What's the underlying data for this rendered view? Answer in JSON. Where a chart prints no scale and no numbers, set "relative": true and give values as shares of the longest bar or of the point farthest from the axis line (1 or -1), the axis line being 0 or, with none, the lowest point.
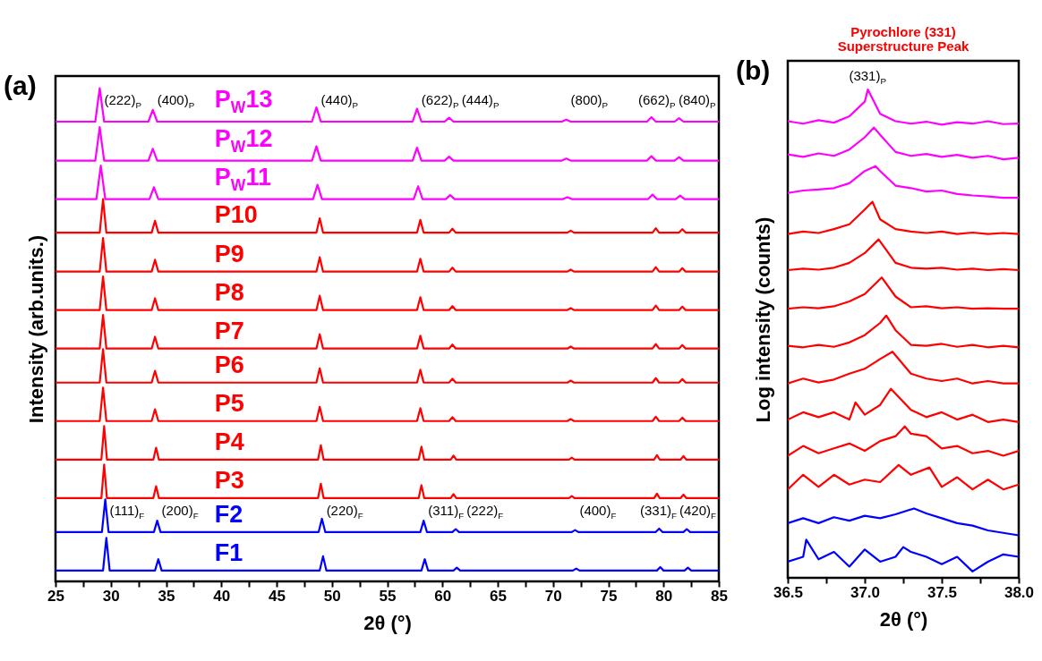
{
  "chart_data": [
    {
      "type": "line",
      "relative": true,
      "xlabel": "2θ (°)",
      "ylabel": "Intensity (arb.units.)",
      "xlim": [
        25,
        85
      ],
      "xticks": [
        25,
        {
          "value": 27.5,
          "label": null
        },
        30,
        {
          "value": 32.5,
          "label": null
        },
        35,
        {
          "value": 37.5,
          "label": null
        },
        40,
        {
          "value": 42.5,
          "label": null
        },
        45,
        {
          "value": 47.5,
          "label": null
        },
        50,
        {
          "value": 52.5,
          "label": null
        },
        55,
        {
          "value": 57.5,
          "label": null
        },
        60,
        {
          "value": 62.5,
          "label": null
        },
        65,
        {
          "value": 67.5,
          "label": null
        },
        70,
        {
          "value": 72.5,
          "label": null
        },
        75,
        {
          "value": 77.5,
          "label": null
        },
        80,
        {
          "value": 82.5,
          "label": null
        },
        85
      ],
      "series": [
        {
          "name": "P$_{W}$13",
          "color": "#ff00ff",
          "x": [
            25,
            28.6,
            29.0,
            29.4,
            33.4,
            33.8,
            34.2,
            48.2,
            48.6,
            49.0,
            57.3,
            57.7,
            58.1,
            60.2,
            60.6,
            61.0,
            70.8,
            71.2,
            71.6,
            78.5,
            78.9,
            79.3,
            81.0,
            81.4,
            81.8,
            85
          ],
          "values": [
            0.932,
            0.932,
            1.0,
            0.932,
            0.932,
            0.956,
            0.932,
            0.932,
            0.961,
            0.932,
            0.932,
            0.958,
            0.932,
            0.932,
            0.94,
            0.932,
            0.932,
            0.936,
            0.932,
            0.932,
            0.941,
            0.932,
            0.932,
            0.939,
            0.932,
            0.932
          ]
        },
        {
          "name": "P$_{W}$12",
          "color": "#ff00ff",
          "x": [
            25,
            28.6,
            29.0,
            29.4,
            33.4,
            33.8,
            34.2,
            48.2,
            48.6,
            49.0,
            57.3,
            57.7,
            58.1,
            60.2,
            60.6,
            61.0,
            70.8,
            71.2,
            71.6,
            78.5,
            78.9,
            79.3,
            81.0,
            81.4,
            81.8,
            85
          ],
          "values": [
            0.853,
            0.853,
            0.921,
            0.853,
            0.853,
            0.877,
            0.853,
            0.853,
            0.882,
            0.853,
            0.853,
            0.879,
            0.853,
            0.853,
            0.861,
            0.853,
            0.853,
            0.857,
            0.853,
            0.853,
            0.862,
            0.853,
            0.853,
            0.86,
            0.853,
            0.853
          ]
        },
        {
          "name": "P$_{W}$11",
          "color": "#ff00ff",
          "x": [
            25,
            28.7,
            29.1,
            29.5,
            33.5,
            33.9,
            34.3,
            48.3,
            48.7,
            49.1,
            57.4,
            57.8,
            58.2,
            60.3,
            60.7,
            61.1,
            70.9,
            71.3,
            71.7,
            78.6,
            79.0,
            79.4,
            81.1,
            81.5,
            81.9,
            85
          ],
          "values": [
            0.775,
            0.775,
            0.843,
            0.775,
            0.775,
            0.799,
            0.775,
            0.775,
            0.804,
            0.775,
            0.775,
            0.801,
            0.775,
            0.775,
            0.783,
            0.775,
            0.775,
            0.779,
            0.775,
            0.775,
            0.784,
            0.775,
            0.775,
            0.782,
            0.775,
            0.775
          ]
        },
        {
          "name": "P10",
          "color": "#ff0000",
          "x": [
            25,
            29.0,
            29.3,
            29.6,
            33.7,
            34.0,
            34.3,
            48.6,
            48.9,
            49.2,
            57.7,
            58.0,
            58.3,
            60.6,
            60.9,
            61.2,
            71.3,
            71.6,
            71.9,
            79.0,
            79.3,
            79.6,
            81.4,
            81.7,
            82.0,
            85
          ],
          "values": [
            0.707,
            0.707,
            0.775,
            0.707,
            0.707,
            0.731,
            0.707,
            0.707,
            0.736,
            0.707,
            0.707,
            0.733,
            0.707,
            0.707,
            0.715,
            0.707,
            0.707,
            0.711,
            0.707,
            0.707,
            0.716,
            0.707,
            0.707,
            0.714,
            0.707,
            0.707
          ]
        },
        {
          "name": "P9",
          "color": "#ff0000",
          "x": [
            25,
            29.0,
            29.3,
            29.6,
            33.7,
            34.0,
            34.3,
            48.6,
            48.9,
            49.2,
            57.7,
            58.0,
            58.3,
            60.6,
            60.9,
            61.2,
            71.3,
            71.6,
            71.9,
            79.0,
            79.3,
            79.6,
            81.4,
            81.7,
            82.0,
            85
          ],
          "values": [
            0.628,
            0.628,
            0.696,
            0.628,
            0.628,
            0.652,
            0.628,
            0.628,
            0.657,
            0.628,
            0.628,
            0.654,
            0.628,
            0.628,
            0.636,
            0.628,
            0.628,
            0.632,
            0.628,
            0.628,
            0.637,
            0.628,
            0.628,
            0.635,
            0.628,
            0.628
          ]
        },
        {
          "name": "P8",
          "color": "#ff0000",
          "x": [
            25,
            29.0,
            29.3,
            29.6,
            33.7,
            34.0,
            34.3,
            48.6,
            48.9,
            49.2,
            57.7,
            58.0,
            58.3,
            60.6,
            60.9,
            61.2,
            71.3,
            71.6,
            71.9,
            79.0,
            79.3,
            79.6,
            81.4,
            81.7,
            82.0,
            85
          ],
          "values": [
            0.55,
            0.55,
            0.618,
            0.55,
            0.55,
            0.574,
            0.55,
            0.55,
            0.579,
            0.55,
            0.55,
            0.576,
            0.55,
            0.55,
            0.558,
            0.55,
            0.55,
            0.554,
            0.55,
            0.55,
            0.559,
            0.55,
            0.55,
            0.557,
            0.55,
            0.55
          ]
        },
        {
          "name": "P7",
          "color": "#ff0000",
          "x": [
            25,
            29.0,
            29.3,
            29.6,
            33.7,
            34.0,
            34.3,
            48.6,
            48.9,
            49.2,
            57.7,
            58.0,
            58.3,
            60.6,
            60.9,
            61.2,
            71.3,
            71.6,
            71.9,
            79.0,
            79.3,
            79.6,
            81.4,
            81.7,
            82.0,
            85
          ],
          "values": [
            0.472,
            0.472,
            0.54,
            0.472,
            0.472,
            0.496,
            0.472,
            0.472,
            0.501,
            0.472,
            0.472,
            0.498,
            0.472,
            0.472,
            0.48,
            0.472,
            0.472,
            0.476,
            0.472,
            0.472,
            0.481,
            0.472,
            0.472,
            0.479,
            0.472,
            0.472
          ]
        },
        {
          "name": "P6",
          "color": "#ff0000",
          "x": [
            25,
            29.0,
            29.3,
            29.6,
            33.7,
            34.0,
            34.3,
            48.6,
            48.9,
            49.2,
            57.7,
            58.0,
            58.3,
            60.6,
            60.9,
            61.2,
            71.3,
            71.6,
            71.9,
            79.0,
            79.3,
            79.6,
            81.4,
            81.7,
            82.0,
            85
          ],
          "values": [
            0.403,
            0.403,
            0.471,
            0.403,
            0.403,
            0.427,
            0.403,
            0.403,
            0.432,
            0.403,
            0.403,
            0.429,
            0.403,
            0.403,
            0.411,
            0.403,
            0.403,
            0.407,
            0.403,
            0.403,
            0.412,
            0.403,
            0.403,
            0.41,
            0.403,
            0.403
          ]
        },
        {
          "name": "P5",
          "color": "#ff0000",
          "x": [
            25,
            29.0,
            29.3,
            29.6,
            33.7,
            34.0,
            34.3,
            48.6,
            48.9,
            49.2,
            57.7,
            58.0,
            58.3,
            60.6,
            60.9,
            61.2,
            71.3,
            71.6,
            71.9,
            79.0,
            79.3,
            79.6,
            81.4,
            81.7,
            82.0,
            85
          ],
          "values": [
            0.325,
            0.325,
            0.393,
            0.325,
            0.325,
            0.349,
            0.325,
            0.325,
            0.354,
            0.325,
            0.325,
            0.351,
            0.325,
            0.325,
            0.333,
            0.325,
            0.325,
            0.329,
            0.325,
            0.325,
            0.334,
            0.325,
            0.325,
            0.332,
            0.325,
            0.325
          ]
        },
        {
          "name": "P4",
          "color": "#ff0000",
          "x": [
            25,
            29.15,
            29.4,
            29.65,
            33.85,
            34.1,
            34.35,
            48.75,
            49.0,
            49.25,
            57.85,
            58.1,
            58.35,
            60.75,
            61.0,
            61.25,
            71.45,
            71.7,
            71.95,
            79.15,
            79.4,
            79.65,
            81.55,
            81.8,
            82.05,
            85
          ],
          "values": [
            0.247,
            0.247,
            0.315,
            0.247,
            0.247,
            0.271,
            0.247,
            0.247,
            0.276,
            0.247,
            0.247,
            0.273,
            0.247,
            0.247,
            0.255,
            0.247,
            0.247,
            0.251,
            0.247,
            0.247,
            0.256,
            0.247,
            0.247,
            0.254,
            0.247,
            0.247
          ]
        },
        {
          "name": "P3",
          "color": "#ff0000",
          "x": [
            25,
            29.15,
            29.4,
            29.65,
            33.85,
            34.1,
            34.35,
            48.75,
            49.0,
            49.25,
            57.85,
            58.1,
            58.35,
            60.75,
            61.0,
            61.25,
            71.45,
            71.7,
            71.95,
            79.15,
            79.4,
            79.65,
            81.55,
            81.8,
            82.05,
            85
          ],
          "values": [
            0.169,
            0.169,
            0.237,
            0.169,
            0.169,
            0.193,
            0.169,
            0.169,
            0.198,
            0.169,
            0.169,
            0.195,
            0.169,
            0.169,
            0.177,
            0.169,
            0.169,
            0.173,
            0.169,
            0.169,
            0.178,
            0.169,
            0.169,
            0.176,
            0.169,
            0.169
          ]
        },
        {
          "name": "F2",
          "color": "#0000ff",
          "x": [
            25,
            29.2,
            29.5,
            29.8,
            33.9,
            34.2,
            34.5,
            48.8,
            49.1,
            49.4,
            58.0,
            58.3,
            58.6,
            60.9,
            61.2,
            61.5,
            71.7,
            72.0,
            72.3,
            79.3,
            79.6,
            79.9,
            81.8,
            82.1,
            82.4,
            85
          ],
          "values": [
            0.1,
            0.1,
            0.166,
            0.1,
            0.1,
            0.123,
            0.1,
            0.1,
            0.127,
            0.1,
            0.1,
            0.123,
            0.1,
            0.1,
            0.106,
            0.1,
            0.1,
            0.104,
            0.1,
            0.1,
            0.107,
            0.1,
            0.1,
            0.106,
            0.1,
            0.1
          ]
        },
        {
          "name": "F1",
          "color": "#0000ff",
          "x": [
            25,
            29.3,
            29.6,
            29.9,
            34.0,
            34.3,
            34.6,
            48.9,
            49.2,
            49.5,
            58.1,
            58.4,
            58.7,
            61.0,
            61.3,
            61.6,
            71.8,
            72.1,
            72.4,
            79.4,
            79.7,
            80.0,
            81.9,
            82.2,
            82.5,
            85
          ],
          "values": [
            0.022,
            0.022,
            0.088,
            0.022,
            0.022,
            0.045,
            0.022,
            0.022,
            0.051,
            0.022,
            0.022,
            0.045,
            0.022,
            0.022,
            0.028,
            0.022,
            0.022,
            0.026,
            0.022,
            0.022,
            0.029,
            0.022,
            0.022,
            0.028,
            0.022,
            0.022
          ]
        }
      ],
      "annotations": [
        "(a)",
        {
          "text": "(222)$_{P}$",
          "x": 29.0,
          "y": 0.932
        },
        {
          "text": "(400)$_{P}$",
          "x": 33.8,
          "y": 0.932
        },
        {
          "text": "(440)$_{P}$",
          "x": 48.6,
          "y": 0.932
        },
        {
          "text": "(622)$_{P}$",
          "x": 57.7,
          "y": 0.932
        },
        {
          "text": "(444)$_{P}$",
          "x": 60.6,
          "y": 0.932
        },
        {
          "text": "(800)$_{P}$",
          "x": 71.2,
          "y": 0.932
        },
        {
          "text": "(662)$_{P}$",
          "x": 78.9,
          "y": 0.932
        },
        {
          "text": "(840)$_{P}$",
          "x": 81.4,
          "y": 0.932
        },
        {
          "text": "(111)$_{F}$",
          "x": 29.5,
          "y": 0.1
        },
        {
          "text": "(200)$_{F}$",
          "x": 34.2,
          "y": 0.1
        },
        {
          "text": "(220)$_{F}$",
          "x": 49.1,
          "y": 0.1
        },
        {
          "text": "(311)$_{F}$",
          "x": 58.3,
          "y": 0.1
        },
        {
          "text": "(222)$_{F}$",
          "x": 61.2,
          "y": 0.1
        },
        {
          "text": "(400)$_{F}$",
          "x": 72.0,
          "y": 0.1
        },
        {
          "text": "(331)$_{F}$",
          "x": 79.6,
          "y": 0.1
        },
        {
          "text": "(420)$_{F}$",
          "x": 82.1,
          "y": 0.1
        }
      ]
    },
    {
      "type": "line",
      "relative": true,
      "title": "Pyrochlore (331)",
      "subtitle": "Superstructure Peak",
      "xlabel": "2θ (°)",
      "ylabel": "Log intensity (counts)",
      "xlim": [
        36.5,
        38.0
      ],
      "xticks": [
        36.5,
        {
          "value": 36.75,
          "label": null
        },
        {
          "value": 37,
          "label": "37.0"
        },
        {
          "value": 37.25,
          "label": null
        },
        37.5,
        {
          "value": 37.75,
          "label": null
        },
        {
          "value": 38,
          "label": "38.0"
        }
      ],
      "series": [
        {
          "color": "#ff00ff",
          "x": [
            36.5,
            36.6,
            36.7,
            36.8,
            36.9,
            37.0,
            37.02,
            37.1,
            37.2,
            37.3,
            37.4,
            37.5,
            37.6,
            37.7,
            37.8,
            37.9,
            38.0
          ],
          "values": [
            0.935,
            0.93,
            0.937,
            0.932,
            0.945,
            0.975,
            1.0,
            0.95,
            0.935,
            0.93,
            0.934,
            0.928,
            0.933,
            0.93,
            0.935,
            0.929,
            0.93
          ]
        },
        {
          "color": "#ff00ff",
          "x": [
            36.5,
            36.6,
            36.7,
            36.8,
            36.9,
            37.0,
            37.06,
            37.1,
            37.2,
            37.3,
            37.4,
            37.5,
            37.6,
            37.7,
            37.8,
            37.9,
            38.0
          ],
          "values": [
            0.867,
            0.862,
            0.869,
            0.864,
            0.877,
            0.902,
            0.922,
            0.907,
            0.872,
            0.864,
            0.868,
            0.862,
            0.866,
            0.86,
            0.864,
            0.857,
            0.86
          ]
        },
        {
          "color": "#ff00ff",
          "x": [
            36.5,
            36.6,
            36.7,
            36.8,
            36.9,
            37.0,
            37.07,
            37.1,
            37.2,
            37.3,
            37.4,
            37.5,
            37.6,
            37.7,
            37.8,
            37.9,
            38.0
          ],
          "values": [
            0.788,
            0.793,
            0.795,
            0.798,
            0.808,
            0.833,
            0.843,
            0.833,
            0.803,
            0.798,
            0.791,
            0.793,
            0.786,
            0.783,
            0.781,
            0.778,
            0.778
          ]
        },
        {
          "color": "#ff0000",
          "x": [
            36.5,
            36.6,
            36.7,
            36.8,
            36.9,
            37.0,
            37.05,
            37.1,
            37.2,
            37.3,
            37.4,
            37.5,
            37.6,
            37.7,
            37.8,
            37.9,
            38.0
          ],
          "values": [
            0.704,
            0.709,
            0.706,
            0.714,
            0.724,
            0.754,
            0.77,
            0.734,
            0.714,
            0.709,
            0.706,
            0.709,
            0.704,
            0.707,
            0.704,
            0.706,
            0.704
          ]
        },
        {
          "color": "#ff0000",
          "x": [
            36.5,
            36.6,
            36.7,
            36.8,
            36.9,
            37.0,
            37.09,
            37.2,
            37.3,
            37.4,
            37.5,
            37.6,
            37.7,
            37.8,
            37.9,
            38.0
          ],
          "values": [
            0.63,
            0.633,
            0.631,
            0.635,
            0.645,
            0.665,
            0.693,
            0.645,
            0.635,
            0.633,
            0.635,
            0.631,
            0.633,
            0.63,
            0.632,
            0.63
          ]
        },
        {
          "color": "#ff0000",
          "x": [
            36.5,
            36.6,
            36.7,
            36.8,
            36.9,
            37.0,
            37.11,
            37.2,
            37.3,
            37.4,
            37.5,
            37.6,
            37.7,
            37.8,
            37.9,
            38.0
          ],
          "values": [
            0.551,
            0.554,
            0.552,
            0.556,
            0.566,
            0.581,
            0.615,
            0.576,
            0.554,
            0.556,
            0.552,
            0.554,
            0.551,
            0.552,
            0.551,
            0.551
          ]
        },
        {
          "color": "#ff0000",
          "x": [
            36.5,
            36.6,
            36.7,
            36.8,
            36.9,
            37.0,
            37.1,
            37.14,
            37.2,
            37.3,
            37.4,
            37.5,
            37.6,
            37.7,
            37.8,
            37.9,
            38.0
          ],
          "values": [
            0.475,
            0.472,
            0.477,
            0.473,
            0.482,
            0.497,
            0.522,
            0.537,
            0.507,
            0.477,
            0.475,
            0.479,
            0.473,
            0.477,
            0.472,
            0.475,
            0.472
          ]
        },
        {
          "color": "#ff0000",
          "x": [
            36.5,
            36.6,
            36.7,
            36.8,
            36.9,
            37.0,
            37.1,
            37.18,
            37.3,
            37.4,
            37.5,
            37.6,
            37.7,
            37.8,
            37.9,
            38.0
          ],
          "values": [
            0.398,
            0.408,
            0.4,
            0.406,
            0.418,
            0.428,
            0.448,
            0.463,
            0.418,
            0.408,
            0.403,
            0.408,
            0.398,
            0.403,
            0.398,
            0.398
          ]
        },
        {
          "color": "#ff0000",
          "x": [
            36.5,
            36.6,
            36.7,
            36.8,
            36.9,
            36.94,
            37.0,
            37.1,
            37.17,
            37.3,
            37.4,
            37.5,
            37.6,
            37.7,
            37.8,
            37.9,
            38.0
          ],
          "values": [
            0.324,
            0.339,
            0.329,
            0.339,
            0.324,
            0.359,
            0.334,
            0.354,
            0.387,
            0.344,
            0.329,
            0.339,
            0.324,
            0.334,
            0.319,
            0.324,
            0.319
          ]
        },
        {
          "color": "#ff0000",
          "x": [
            36.5,
            36.6,
            36.7,
            36.8,
            36.9,
            37.0,
            37.1,
            37.2,
            37.26,
            37.3,
            37.4,
            37.5,
            37.6,
            37.7,
            37.8,
            37.9,
            38.0
          ],
          "values": [
            0.25,
            0.27,
            0.255,
            0.265,
            0.275,
            0.26,
            0.28,
            0.29,
            0.31,
            0.295,
            0.29,
            0.265,
            0.27,
            0.255,
            0.26,
            0.25,
            0.26
          ]
        },
        {
          "color": "#ff0000",
          "x": [
            36.5,
            36.6,
            36.7,
            36.8,
            36.9,
            37.0,
            37.1,
            37.22,
            37.3,
            37.42,
            37.5,
            37.6,
            37.7,
            37.8,
            37.9,
            38.0
          ],
          "values": [
            0.181,
            0.211,
            0.186,
            0.211,
            0.191,
            0.201,
            0.196,
            0.231,
            0.211,
            0.226,
            0.186,
            0.206,
            0.181,
            0.201,
            0.181,
            0.191
          ]
        },
        {
          "color": "#0000ff",
          "x": [
            36.5,
            36.6,
            36.7,
            36.8,
            36.9,
            37.0,
            37.1,
            37.2,
            37.32,
            37.4,
            37.5,
            37.6,
            37.7,
            37.8,
            37.9,
            38.0
          ],
          "values": [
            0.112,
            0.122,
            0.112,
            0.124,
            0.117,
            0.127,
            0.122,
            0.13,
            0.142,
            0.132,
            0.122,
            0.112,
            0.107,
            0.097,
            0.092,
            0.087
          ]
        },
        {
          "color": "#0000ff",
          "x": [
            36.5,
            36.6,
            36.62,
            36.7,
            36.8,
            36.9,
            37.0,
            37.1,
            37.2,
            37.25,
            37.3,
            37.4,
            37.5,
            37.6,
            37.7,
            37.8,
            37.9,
            38.0
          ],
          "values": [
            0.033,
            0.043,
            0.078,
            0.038,
            0.053,
            0.023,
            0.058,
            0.033,
            0.043,
            0.063,
            0.053,
            0.043,
            0.028,
            0.043,
            0.013,
            0.033,
            0.048,
            0.043
          ]
        }
      ],
      "annotations": [
        "(b)",
        {
          "text": "(331)$_{P}$",
          "x": 37.02,
          "y": 1.0
        }
      ]
    }
  ]
}
